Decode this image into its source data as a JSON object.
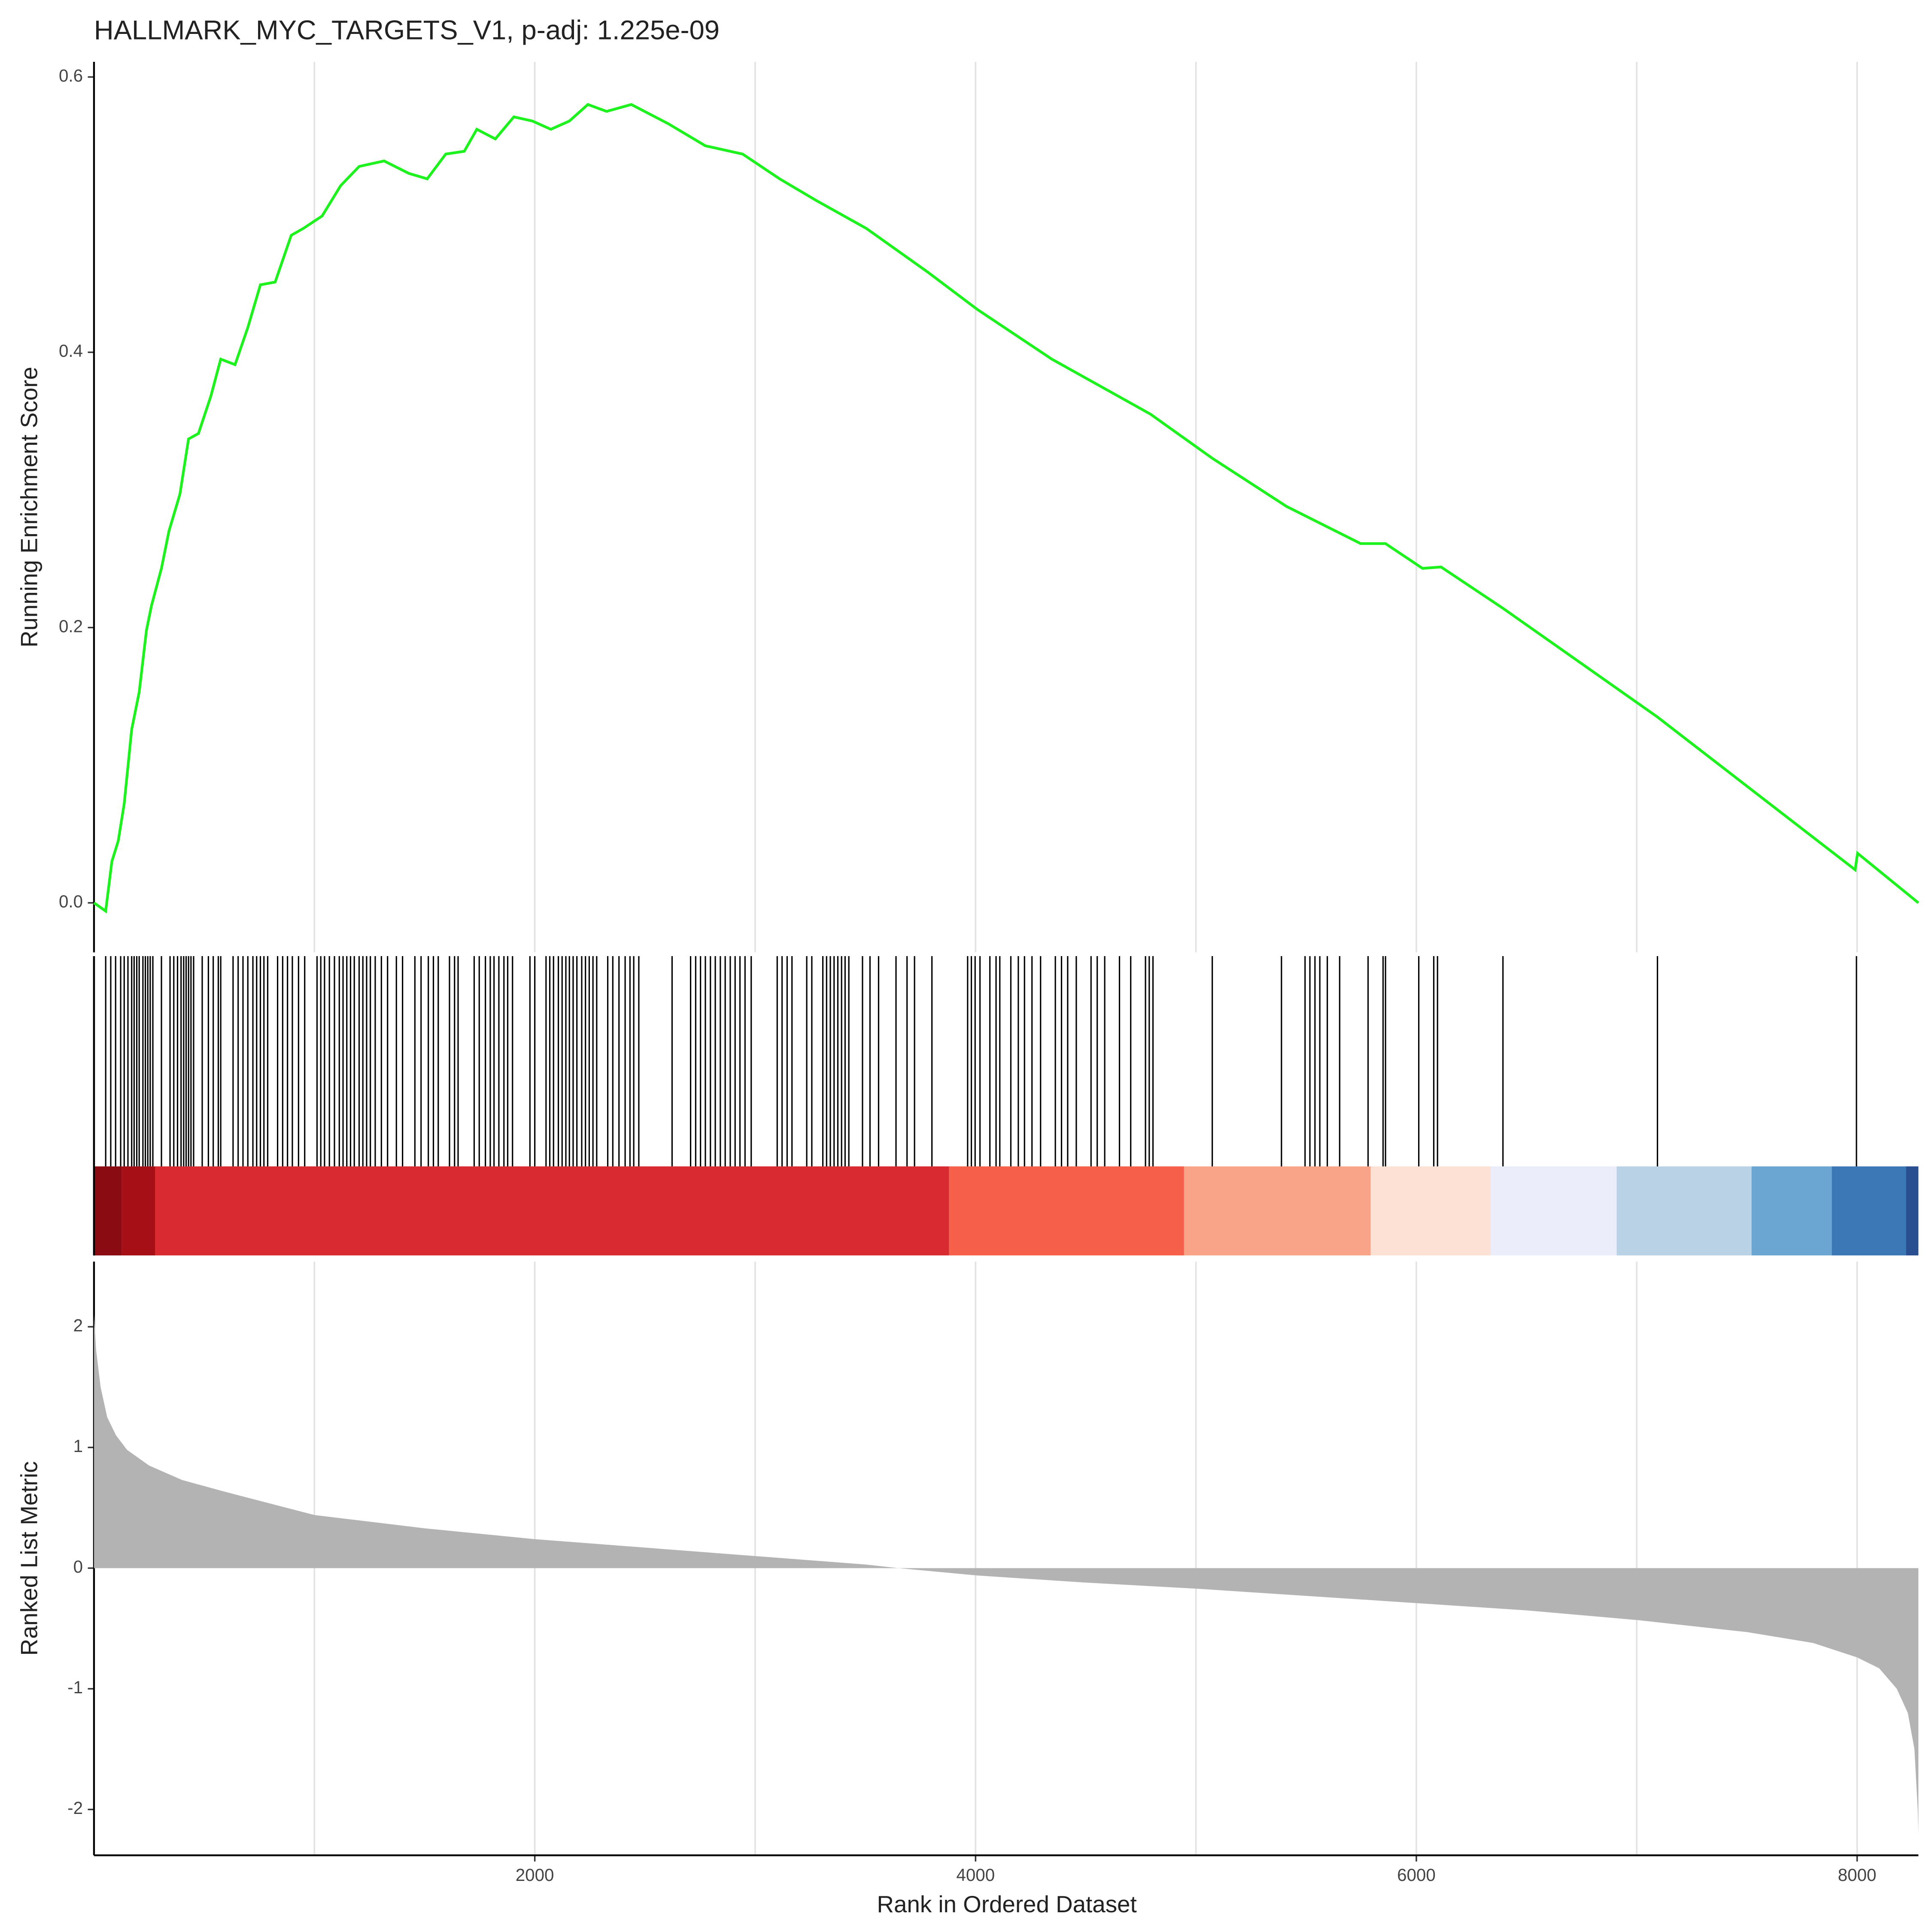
{
  "chart_data": [
    {
      "type": "line",
      "title": "HALLMARK_MYC_TARGETS_V1, p-adj: 1.225e-09",
      "ylabel": "Running Enrichment Score",
      "color": "#1ef21e",
      "x": [
        0,
        53,
        81,
        110,
        137,
        171,
        205,
        238,
        261,
        306,
        340,
        390,
        429,
        474,
        530,
        575,
        640,
        698,
        755,
        822,
        895,
        950,
        1035,
        1119,
        1203,
        1316,
        1428,
        1512,
        1596,
        1680,
        1737,
        1821,
        1905,
        1989,
        2073,
        2157,
        2241,
        2326,
        2438,
        2606,
        2774,
        2943,
        3111,
        3280,
        3504,
        3785,
        4009,
        4346,
        4794,
        5074,
        5411,
        5523,
        5747,
        5860,
        6028,
        6112,
        6393,
        7094,
        7991,
        8002,
        8278
      ],
      "values": [
        0,
        -0.006,
        0.03,
        0.045,
        0.072,
        0.126,
        0.153,
        0.198,
        0.216,
        0.243,
        0.27,
        0.297,
        0.337,
        0.341,
        0.368,
        0.395,
        0.391,
        0.418,
        0.449,
        0.451,
        0.485,
        0.49,
        0.499,
        0.521,
        0.535,
        0.539,
        0.53,
        0.526,
        0.544,
        0.546,
        0.562,
        0.555,
        0.571,
        0.568,
        0.562,
        0.568,
        0.58,
        0.575,
        0.58,
        0.566,
        0.55,
        0.544,
        0.526,
        0.51,
        0.49,
        0.458,
        0.431,
        0.395,
        0.355,
        0.323,
        0.288,
        0.279,
        0.261,
        0.261,
        0.243,
        0.244,
        0.214,
        0.135,
        0.024,
        0.036,
        0
      ],
      "xlim": [
        0,
        8278
      ],
      "ylim": [
        -0.036,
        0.611
      ],
      "yticks": [
        {
          "value": 0,
          "label": "0.0"
        },
        0.2,
        0.4,
        0.6
      ],
      "xgrid": [
        1000,
        2000,
        3000,
        4000,
        5000,
        6000,
        7000,
        8000
      ]
    },
    {
      "type": "barcode",
      "color": "#000000",
      "xlim": [
        0,
        8278
      ],
      "hits": [
        53,
        76,
        98,
        121,
        137,
        154,
        171,
        182,
        194,
        205,
        222,
        233,
        244,
        255,
        267,
        306,
        345,
        362,
        379,
        395,
        407,
        418,
        429,
        440,
        452,
        491,
        519,
        541,
        564,
        575,
        631,
        654,
        676,
        698,
        721,
        738,
        755,
        771,
        788,
        833,
        856,
        878,
        900,
        928,
        956,
        1012,
        1029,
        1046,
        1068,
        1091,
        1113,
        1130,
        1147,
        1164,
        1181,
        1203,
        1220,
        1237,
        1254,
        1276,
        1304,
        1332,
        1372,
        1400,
        1456,
        1484,
        1517,
        1540,
        1562,
        1613,
        1636,
        1652,
        1725,
        1748,
        1776,
        1798,
        1815,
        1837,
        1860,
        1877,
        1899,
        1978,
        2000,
        2051,
        2068,
        2085,
        2107,
        2124,
        2141,
        2157,
        2174,
        2191,
        2213,
        2230,
        2247,
        2264,
        2281,
        2331,
        2354,
        2382,
        2410,
        2432,
        2449,
        2472,
        2623,
        2707,
        2730,
        2752,
        2774,
        2797,
        2819,
        2842,
        2864,
        2887,
        2909,
        2931,
        2954,
        2982,
        3100,
        3122,
        3145,
        3167,
        3234,
        3257,
        3307,
        3324,
        3341,
        3358,
        3375,
        3392,
        3408,
        3425,
        3487,
        3521,
        3560,
        3639,
        3689,
        3723,
        3802,
        3964,
        3981,
        3998,
        4020,
        4065,
        4093,
        4110,
        4160,
        4194,
        4222,
        4256,
        4295,
        4362,
        4390,
        4418,
        4457,
        4524,
        4552,
        4586,
        4653,
        4704,
        4771,
        4788,
        4805,
        5074,
        5388,
        5495,
        5517,
        5540,
        5562,
        5596,
        5652,
        5781,
        5849,
        5860,
        6011,
        6079,
        6096,
        6393,
        7094,
        7997
      ],
      "color_bar": [
        {
          "start": 0,
          "end": 126,
          "color": "#8a0b12"
        },
        {
          "start": 126,
          "end": 278,
          "color": "#a50f15"
        },
        {
          "start": 278,
          "end": 3880,
          "color": "#da2a31"
        },
        {
          "start": 3880,
          "end": 4946,
          "color": "#f6604b"
        },
        {
          "start": 4946,
          "end": 5793,
          "color": "#f9a388"
        },
        {
          "start": 5793,
          "end": 6337,
          "color": "#fde1d4"
        },
        {
          "start": 6337,
          "end": 6909,
          "color": "#ebeefa"
        },
        {
          "start": 6909,
          "end": 7521,
          "color": "#b9d2e6"
        },
        {
          "start": 7521,
          "end": 7885,
          "color": "#6ba6d2"
        },
        {
          "start": 7885,
          "end": 8222,
          "color": "#3c78b6"
        },
        {
          "start": 8222,
          "end": 8278,
          "color": "#2a4f91"
        }
      ]
    },
    {
      "type": "area",
      "ylabel": "Ranked List Metric",
      "xlabel": "Rank in Ordered Dataset",
      "color": "#b3b3b3",
      "x": [
        0,
        10,
        30,
        60,
        100,
        150,
        250,
        400,
        600,
        1000,
        1500,
        2000,
        2500,
        3000,
        3500,
        3650,
        4000,
        4500,
        5000,
        5500,
        6000,
        6500,
        7000,
        7500,
        7800,
        8000,
        8100,
        8180,
        8230,
        8260,
        8275,
        8278
      ],
      "values": [
        2.1,
        1.8,
        1.5,
        1.25,
        1.1,
        0.98,
        0.85,
        0.73,
        0.63,
        0.44,
        0.33,
        0.24,
        0.17,
        0.1,
        0.03,
        0,
        -0.06,
        -0.12,
        -0.17,
        -0.23,
        -0.29,
        -0.35,
        -0.43,
        -0.53,
        -0.62,
        -0.74,
        -0.83,
        -1.0,
        -1.2,
        -1.5,
        -2.0,
        -2.2
      ],
      "xlim": [
        0,
        8278
      ],
      "ylim": [
        -2.38,
        2.54
      ],
      "yticks": [
        -2,
        -1,
        0,
        1,
        2
      ],
      "xticks": [
        2000,
        4000,
        6000,
        8000
      ],
      "xgrid": [
        1000,
        2000,
        3000,
        4000,
        5000,
        6000,
        7000,
        8000
      ]
    }
  ]
}
